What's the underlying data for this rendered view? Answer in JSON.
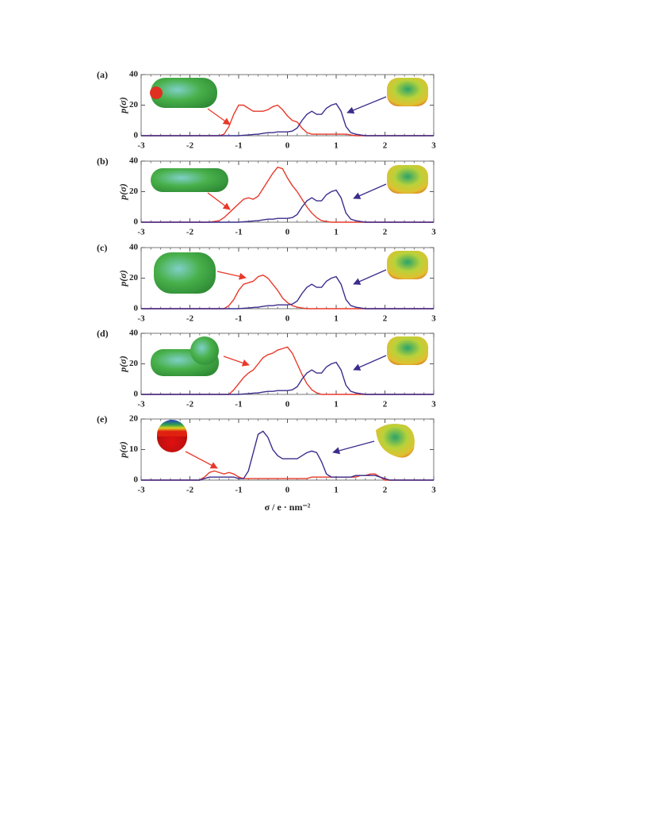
{
  "chart_data": [
    {
      "type": "line",
      "panel_label": "(a)",
      "ylabel": "p(σ)",
      "x": [
        -3,
        -2.0,
        -1.9,
        -1.8,
        -1.7,
        -1.6,
        -1.5,
        -1.4,
        -1.3,
        -1.2,
        -1.1,
        -1.0,
        -0.9,
        -0.8,
        -0.7,
        -0.6,
        -0.5,
        -0.4,
        -0.3,
        -0.2,
        -0.1,
        0.0,
        0.1,
        0.2,
        0.3,
        0.4,
        0.5,
        0.6,
        0.7,
        0.8,
        0.9,
        1.0,
        1.1,
        1.2,
        1.3,
        1.4,
        1.5,
        1.6,
        1.7,
        1.8,
        1.9,
        2.0,
        2.1,
        2.2,
        3
      ],
      "series": [
        {
          "color": "#e8392a",
          "values": [
            0,
            0,
            0,
            0,
            0,
            0,
            0,
            0,
            1,
            6,
            14,
            20,
            20,
            18,
            16,
            16,
            16,
            17,
            19,
            20,
            17,
            13,
            10,
            9,
            5,
            2,
            1,
            1,
            1,
            1,
            1,
            1,
            1,
            1,
            0.5,
            0,
            0,
            0,
            0,
            0,
            0,
            0,
            0,
            0,
            0
          ]
        },
        {
          "color": "#3a2d8c",
          "values": [
            0,
            0,
            0,
            0,
            0,
            0,
            0,
            0,
            0,
            0,
            0,
            0,
            0.3,
            0.5,
            0.8,
            1,
            1.5,
            2,
            2,
            2.5,
            2.5,
            2.5,
            3,
            5,
            10,
            14,
            16,
            14,
            14,
            18,
            20,
            21,
            16,
            6,
            2,
            1,
            0.5,
            0,
            0,
            0,
            0,
            0,
            0,
            0,
            0
          ]
        }
      ],
      "xlim": [
        -3,
        3
      ],
      "xticks": [
        -3,
        -2,
        -1,
        0,
        1,
        2,
        3
      ],
      "ylim": [
        0,
        40
      ],
      "yticks": [
        0,
        20,
        40
      ]
    },
    {
      "type": "line",
      "panel_label": "(b)",
      "ylabel": "p(σ)",
      "x": [
        -3,
        -2.0,
        -1.9,
        -1.8,
        -1.7,
        -1.6,
        -1.5,
        -1.4,
        -1.3,
        -1.2,
        -1.1,
        -1.0,
        -0.9,
        -0.8,
        -0.7,
        -0.6,
        -0.5,
        -0.4,
        -0.3,
        -0.2,
        -0.1,
        0.0,
        0.1,
        0.2,
        0.3,
        0.4,
        0.5,
        0.6,
        0.7,
        0.8,
        0.9,
        1.0,
        1.1,
        1.2,
        1.3,
        1.4,
        1.5,
        1.6,
        1.7,
        1.8,
        1.9,
        2.0,
        2.1,
        2.2,
        3
      ],
      "series": [
        {
          "color": "#e8392a",
          "values": [
            0,
            0,
            0,
            0,
            0,
            0,
            0.5,
            1,
            3,
            6,
            9,
            12,
            15,
            16,
            15,
            17,
            22,
            27,
            32,
            36,
            35,
            29,
            24,
            20,
            15,
            10,
            6,
            3,
            1,
            0.5,
            0,
            0,
            0,
            0,
            0,
            0,
            0,
            0,
            0,
            0,
            0,
            0,
            0,
            0,
            0
          ]
        },
        {
          "color": "#3a2d8c",
          "values": [
            0,
            0,
            0,
            0,
            0,
            0,
            0,
            0,
            0,
            0,
            0,
            0,
            0.3,
            0.5,
            0.8,
            1,
            1.5,
            2,
            2,
            2.5,
            2.5,
            2.5,
            3,
            5,
            10,
            14,
            16,
            14,
            14,
            18,
            20,
            21,
            16,
            6,
            2,
            1,
            0.5,
            0,
            0,
            0,
            0,
            0,
            0,
            0,
            0
          ]
        }
      ],
      "xlim": [
        -3,
        3
      ],
      "xticks": [
        -3,
        -2,
        -1,
        0,
        1,
        2,
        3
      ],
      "ylim": [
        0,
        40
      ],
      "yticks": [
        0,
        20,
        40
      ]
    },
    {
      "type": "line",
      "panel_label": "(c)",
      "ylabel": "p(σ)",
      "x": [
        -3,
        -2.0,
        -1.9,
        -1.8,
        -1.7,
        -1.6,
        -1.5,
        -1.4,
        -1.3,
        -1.2,
        -1.1,
        -1.0,
        -0.9,
        -0.8,
        -0.7,
        -0.6,
        -0.5,
        -0.4,
        -0.3,
        -0.2,
        -0.1,
        0.0,
        0.1,
        0.2,
        0.3,
        0.4,
        0.5,
        0.6,
        0.7,
        0.8,
        0.9,
        1.0,
        1.1,
        1.2,
        1.3,
        1.4,
        1.5,
        1.6,
        1.7,
        1.8,
        1.9,
        2.0,
        2.1,
        2.2,
        3
      ],
      "series": [
        {
          "color": "#e8392a",
          "values": [
            0,
            0,
            0,
            0,
            0,
            0,
            0,
            0,
            0,
            2,
            6,
            12,
            16,
            17,
            18,
            21,
            22,
            20,
            16,
            12,
            7,
            4,
            2,
            1,
            0.5,
            0,
            0,
            0,
            0,
            0,
            0,
            0,
            0,
            0,
            0,
            0,
            0,
            0,
            0,
            0,
            0,
            0,
            0,
            0,
            0
          ]
        },
        {
          "color": "#3a2d8c",
          "values": [
            0,
            0,
            0,
            0,
            0,
            0,
            0,
            0,
            0,
            0,
            0,
            0,
            0.3,
            0.5,
            0.8,
            1,
            1.5,
            2,
            2,
            2.5,
            2.5,
            2.5,
            3,
            5,
            10,
            14,
            16,
            14,
            14,
            18,
            20,
            21,
            16,
            6,
            2,
            1,
            0.5,
            0,
            0,
            0,
            0,
            0,
            0,
            0,
            0
          ]
        }
      ],
      "xlim": [
        -3,
        3
      ],
      "xticks": [
        -3,
        -2,
        -1,
        0,
        1,
        2,
        3
      ],
      "ylim": [
        0,
        40
      ],
      "yticks": [
        0,
        20,
        40
      ]
    },
    {
      "type": "line",
      "panel_label": "(d)",
      "ylabel": "p(σ)",
      "x": [
        -3,
        -2.0,
        -1.9,
        -1.8,
        -1.7,
        -1.6,
        -1.5,
        -1.4,
        -1.3,
        -1.2,
        -1.1,
        -1.0,
        -0.9,
        -0.8,
        -0.7,
        -0.6,
        -0.5,
        -0.4,
        -0.3,
        -0.2,
        -0.1,
        0.0,
        0.1,
        0.2,
        0.3,
        0.4,
        0.5,
        0.6,
        0.7,
        0.8,
        0.9,
        1.0,
        1.1,
        1.2,
        1.3,
        1.4,
        1.5,
        1.6,
        1.7,
        1.8,
        1.9,
        2.0,
        2.1,
        2.2,
        3
      ],
      "series": [
        {
          "color": "#e8392a",
          "values": [
            0,
            0,
            0,
            0,
            0,
            0,
            0,
            0,
            0,
            0,
            3,
            7,
            11,
            14,
            16,
            20,
            24,
            26,
            27,
            29,
            30,
            31,
            27,
            20,
            13,
            7,
            3,
            1,
            0,
            0,
            0,
            0,
            0,
            0,
            0,
            0,
            0,
            0,
            0,
            0,
            0,
            0,
            0,
            0,
            0
          ]
        },
        {
          "color": "#3a2d8c",
          "values": [
            0,
            0,
            0,
            0,
            0,
            0,
            0,
            0,
            0,
            0,
            0,
            0,
            0.3,
            0.5,
            0.8,
            1,
            1.5,
            2,
            2,
            2.5,
            2.5,
            2.5,
            3,
            5,
            10,
            14,
            16,
            14,
            14,
            18,
            20,
            21,
            16,
            6,
            2,
            1,
            0.5,
            0,
            0,
            0,
            0,
            0,
            0,
            0,
            0
          ]
        }
      ],
      "xlim": [
        -3,
        3
      ],
      "xticks": [
        -3,
        -2,
        -1,
        0,
        1,
        2,
        3
      ],
      "ylim": [
        0,
        40
      ],
      "yticks": [
        0,
        20,
        40
      ]
    },
    {
      "type": "line",
      "panel_label": "(e)",
      "ylabel": "p(σ)",
      "xlabel": "σ / e · nm⁻²",
      "x": [
        -3,
        -2.0,
        -1.9,
        -1.8,
        -1.7,
        -1.6,
        -1.5,
        -1.4,
        -1.3,
        -1.2,
        -1.1,
        -1.0,
        -0.9,
        -0.8,
        -0.7,
        -0.6,
        -0.5,
        -0.4,
        -0.3,
        -0.2,
        -0.1,
        0.0,
        0.1,
        0.2,
        0.3,
        0.4,
        0.5,
        0.6,
        0.7,
        0.8,
        0.9,
        1.0,
        1.1,
        1.2,
        1.3,
        1.4,
        1.5,
        1.6,
        1.7,
        1.8,
        1.9,
        2.0,
        2.1,
        2.2,
        3
      ],
      "series": [
        {
          "color": "#e8392a",
          "values": [
            0,
            0,
            0,
            0,
            1,
            2.5,
            3,
            2.5,
            2,
            2.5,
            2,
            1,
            0.5,
            0.5,
            0.5,
            0.5,
            0.5,
            0.5,
            0.5,
            0.5,
            0.5,
            0.5,
            0.5,
            0.5,
            0.5,
            0.5,
            1,
            1,
            1,
            1,
            1,
            1,
            1,
            1,
            1,
            1,
            1.5,
            1.5,
            2,
            2,
            1,
            0,
            0,
            0,
            0
          ]
        },
        {
          "color": "#3a2d8c",
          "values": [
            0,
            0,
            0,
            0,
            0.5,
            1,
            1,
            1,
            1,
            1,
            1,
            0.5,
            0.5,
            3,
            9,
            15,
            16,
            14,
            10,
            8,
            7,
            7,
            7,
            7,
            8,
            9,
            9.5,
            9,
            6,
            2,
            1,
            1,
            1,
            1,
            1,
            1.5,
            1.5,
            1.5,
            1.5,
            1.5,
            1,
            0.5,
            0,
            0,
            0
          ]
        }
      ],
      "xlim": [
        -3,
        3
      ],
      "xticks": [
        -3,
        -2,
        -1,
        0,
        1,
        2,
        3
      ],
      "ylim": [
        0,
        20
      ],
      "yticks": [
        0,
        10,
        20
      ]
    }
  ]
}
